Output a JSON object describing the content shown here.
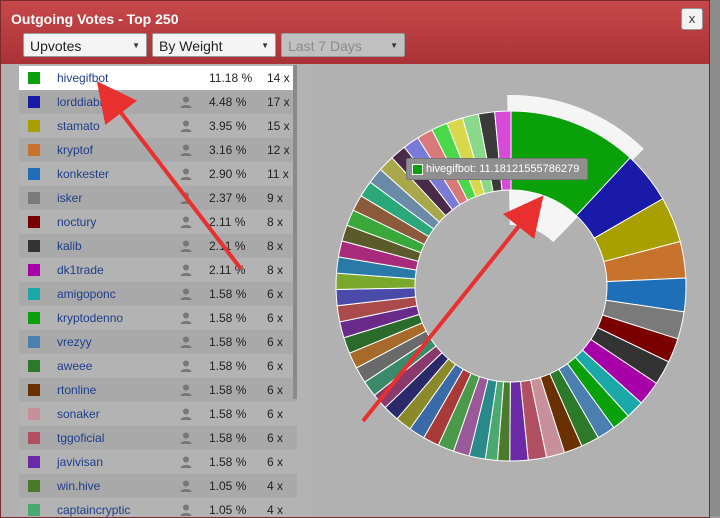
{
  "dialog": {
    "title": "Outgoing Votes - Top 250",
    "close_label": "x"
  },
  "filters": {
    "type": "Upvotes",
    "weight": "By Weight",
    "period": "Last 7 Days"
  },
  "rows": [
    {
      "name": "hivegifbot",
      "pct": "11.18 %",
      "count": "14 x",
      "color": "#0aa00a",
      "selected": true,
      "user_icon": false
    },
    {
      "name": "lorddiablo",
      "pct": "4.48 %",
      "count": "17 x",
      "color": "#1a1aa8",
      "selected": false,
      "user_icon": true
    },
    {
      "name": "stamato",
      "pct": "3.95 %",
      "count": "15 x",
      "color": "#a8a000",
      "selected": false,
      "user_icon": true
    },
    {
      "name": "kryptof",
      "pct": "3.16 %",
      "count": "12 x",
      "color": "#c8732d",
      "selected": false,
      "user_icon": true
    },
    {
      "name": "konkester",
      "pct": "2.90 %",
      "count": "11 x",
      "color": "#1f6fb8",
      "selected": false,
      "user_icon": true
    },
    {
      "name": "isker",
      "pct": "2.37 %",
      "count": "9 x",
      "color": "#7a7a7a",
      "selected": false,
      "user_icon": true
    },
    {
      "name": "noctury",
      "pct": "2.11 %",
      "count": "8 x",
      "color": "#7a0000",
      "selected": false,
      "user_icon": true
    },
    {
      "name": "kalib",
      "pct": "2.11 %",
      "count": "8 x",
      "color": "#333333",
      "selected": false,
      "user_icon": true
    },
    {
      "name": "dk1trade",
      "pct": "2.11 %",
      "count": "8 x",
      "color": "#a800a8",
      "selected": false,
      "user_icon": true
    },
    {
      "name": "amigoponc",
      "pct": "1.58 %",
      "count": "6 x",
      "color": "#1aa8a8",
      "selected": false,
      "user_icon": true
    },
    {
      "name": "kryptodenno",
      "pct": "1.58 %",
      "count": "6 x",
      "color": "#0aa00a",
      "selected": false,
      "user_icon": true
    },
    {
      "name": "vrezyy",
      "pct": "1.58 %",
      "count": "6 x",
      "color": "#4a7fb0",
      "selected": false,
      "user_icon": true
    },
    {
      "name": "aweee",
      "pct": "1.58 %",
      "count": "6 x",
      "color": "#2a7a2a",
      "selected": false,
      "user_icon": true
    },
    {
      "name": "rtonline",
      "pct": "1.58 %",
      "count": "6 x",
      "color": "#6a3000",
      "selected": false,
      "user_icon": true
    },
    {
      "name": "sonaker",
      "pct": "1.58 %",
      "count": "6 x",
      "color": "#c8909a",
      "selected": false,
      "user_icon": true
    },
    {
      "name": "tggoficial",
      "pct": "1.58 %",
      "count": "6 x",
      "color": "#b05060",
      "selected": false,
      "user_icon": true
    },
    {
      "name": "javivisan",
      "pct": "1.58 %",
      "count": "6 x",
      "color": "#6a2aa8",
      "selected": false,
      "user_icon": true
    },
    {
      "name": "win.hive",
      "pct": "1.05 %",
      "count": "4 x",
      "color": "#4a7a2a",
      "selected": false,
      "user_icon": true
    },
    {
      "name": "captaincryptic",
      "pct": "1.05 %",
      "count": "4 x",
      "color": "#4aa870",
      "selected": false,
      "user_icon": true
    }
  ],
  "tooltip": {
    "name": "hivegifbot",
    "value": "11.18121555786279"
  },
  "chart_data": {
    "type": "pie",
    "categories": [
      "hivegifbot",
      "lorddiablo",
      "stamato",
      "kryptof",
      "konkester",
      "isker",
      "noctury",
      "kalib",
      "dk1trade",
      "amigoponc",
      "kryptodenno",
      "vrezyy",
      "aweee",
      "rtonline",
      "sonaker",
      "tggoficial",
      "javivisan",
      "win.hive",
      "captaincryptic"
    ],
    "values": [
      11.18,
      4.48,
      3.95,
      3.16,
      2.9,
      2.37,
      2.11,
      2.11,
      2.11,
      1.58,
      1.58,
      1.58,
      1.58,
      1.58,
      1.58,
      1.58,
      1.58,
      1.05,
      1.05
    ],
    "colors": [
      "#0aa00a",
      "#1a1aa8",
      "#a8a000",
      "#c8732d",
      "#1f6fb8",
      "#7a7a7a",
      "#7a0000",
      "#333333",
      "#a800a8",
      "#1aa8a8",
      "#0aa00a",
      "#4a7fb0",
      "#2a7a2a",
      "#6a3000",
      "#c8909a",
      "#b05060",
      "#6a2aa8",
      "#4a7a2a",
      "#4aa870"
    ],
    "others_colors": [
      "#2a8a8a",
      "#9a5a9a",
      "#4a9a4a",
      "#a83a3a",
      "#3a6aa8",
      "#8a8a2a",
      "#2a2a6a",
      "#8a3a6a",
      "#3a8a6a",
      "#6a6a6a",
      "#a86a2a",
      "#2a6a2a",
      "#6a2a8a",
      "#aa4a4a",
      "#4a4aaa",
      "#7aa82a",
      "#2a7aa8",
      "#a82a7a",
      "#5a5a2a",
      "#3aa83a",
      "#8a5a3a",
      "#2aa87a",
      "#6a8aa8",
      "#a8a84a",
      "#4a2a4a",
      "#7a7ad8",
      "#d87a7a",
      "#4ad84a",
      "#d8d84a",
      "#8ad88a",
      "#3a3a3a",
      "#d84ad8"
    ],
    "others_total": 44.7,
    "highlight": "hivegifbot"
  }
}
